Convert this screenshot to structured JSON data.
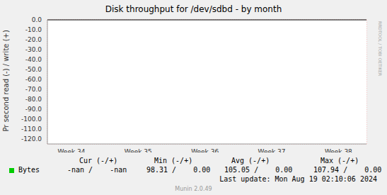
{
  "chart_data": {
    "type": "line",
    "title": "Disk throughput for /dev/sdbd - by month",
    "y_label": "Pr second read (-) / write (+)",
    "x": [
      34,
      35,
      36,
      37,
      38
    ],
    "xlim": [
      33.64,
      38.42
    ],
    "xticks": [
      {
        "value": 34,
        "label": "Week 34"
      },
      {
        "value": 35,
        "label": "Week 35"
      },
      {
        "value": 36,
        "label": "Week 36"
      },
      {
        "value": 37,
        "label": "Week 37"
      },
      {
        "value": 38,
        "label": "Week 38"
      }
    ],
    "ylim": [
      -125,
      0
    ],
    "yticks": [
      {
        "value": 0,
        "label": "0.0"
      },
      {
        "value": -10,
        "label": "-10.0"
      },
      {
        "value": -20,
        "label": "-20.0"
      },
      {
        "value": -30,
        "label": "-30.0"
      },
      {
        "value": -40,
        "label": "-40.0"
      },
      {
        "value": -50,
        "label": "-50.0"
      },
      {
        "value": -60,
        "label": "-60.0"
      },
      {
        "value": -70,
        "label": "-70.0"
      },
      {
        "value": -80,
        "label": "-80.0"
      },
      {
        "value": -90,
        "label": "-90.0"
      },
      {
        "value": -100,
        "label": "-100.0"
      },
      {
        "value": -110,
        "label": "-110.0"
      },
      {
        "value": -120,
        "label": "-120.0"
      }
    ],
    "grid": true,
    "series": [
      {
        "name": "Bytes",
        "color": "#00cc00",
        "values": [
          null,
          null,
          null,
          null,
          null
        ]
      }
    ],
    "legend_table": {
      "columns": [
        "Cur (-/+)",
        "Min (-/+)",
        "Avg (-/+)",
        "Max (-/+)"
      ],
      "rows": [
        {
          "name": "Bytes",
          "cells": [
            "-nan /    -nan",
            "98.31 /    0.00",
            "105.05 /    0.00",
            "107.94 /    0.00"
          ]
        }
      ]
    },
    "footer": "Last update: Mon Aug 19 02:10:06 2024",
    "credit": "Munin 2.0.49",
    "watermark": "RRDTOOL / TOBI OETIKER"
  }
}
